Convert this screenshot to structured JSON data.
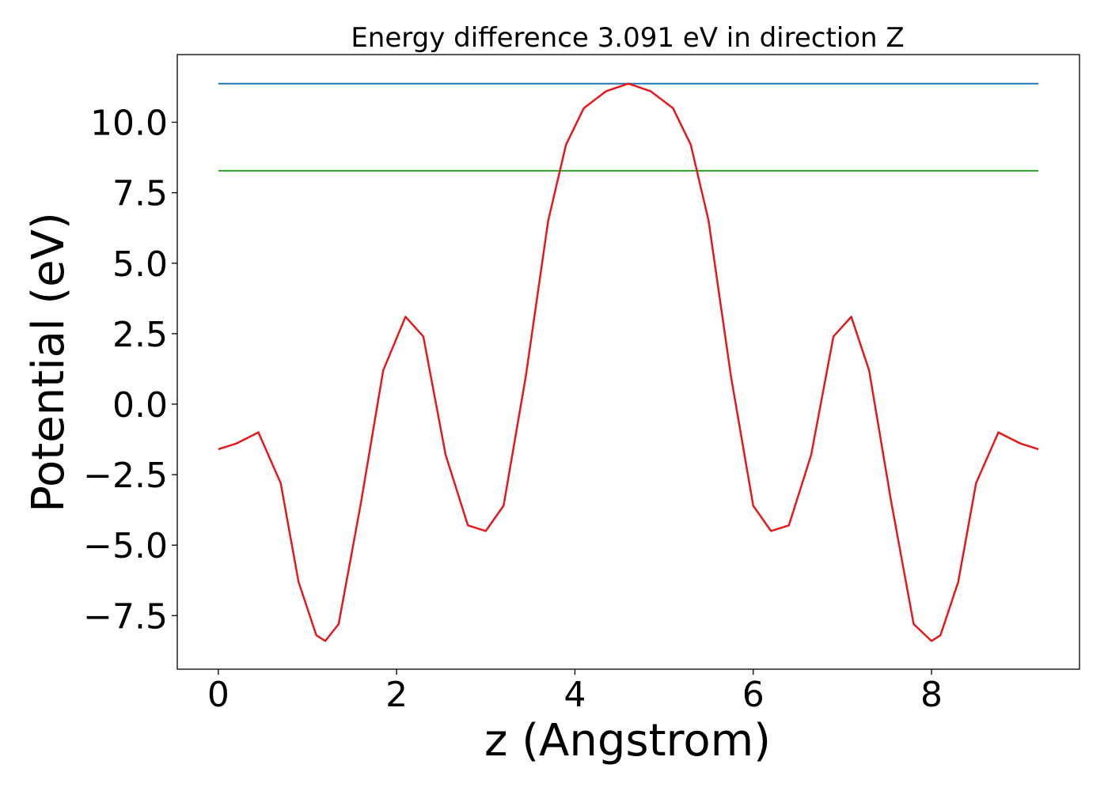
{
  "chart_data": {
    "type": "line",
    "title": "Energy difference 3.091 eV in direction Z",
    "xlabel": "z (Angstrom)",
    "ylabel": "Potential (eV)",
    "xlim": [
      -0.46,
      9.66
    ],
    "ylim": [
      -9.4,
      12.4
    ],
    "xticks": [
      0,
      2,
      4,
      6,
      8
    ],
    "xtick_labels": [
      "0",
      "2",
      "4",
      "6",
      "8"
    ],
    "yticks": [
      -7.5,
      -5.0,
      -2.5,
      0.0,
      2.5,
      5.0,
      7.5,
      10.0
    ],
    "ytick_labels": [
      "−7.5",
      "−5.0",
      "−2.5",
      "0.0",
      "2.5",
      "5.0",
      "7.5",
      "10.0"
    ],
    "grid": false,
    "legend": false,
    "series": [
      {
        "color": "#1f77b4",
        "x": [
          0,
          9.2
        ],
        "y": [
          11.37,
          11.37
        ]
      },
      {
        "color": "#2ca02c",
        "x": [
          0,
          9.2
        ],
        "y": [
          8.28,
          8.28
        ]
      },
      {
        "color": "#e31a1c",
        "x": [
          0,
          0.2,
          0.45,
          0.7,
          0.9,
          1.1,
          1.2,
          1.35,
          1.6,
          1.85,
          2.1,
          2.3,
          2.55,
          2.8,
          3.0,
          3.2,
          3.45,
          3.7,
          3.9,
          4.1,
          4.35,
          4.6,
          4.85,
          5.1,
          5.3,
          5.5,
          5.75,
          6.0,
          6.2,
          6.4,
          6.65,
          6.9,
          7.1,
          7.3,
          7.55,
          7.8,
          8.0,
          8.1,
          8.3,
          8.5,
          8.75,
          9.0,
          9.2
        ],
        "y": [
          -1.6,
          -1.4,
          -1.0,
          -2.8,
          -6.3,
          -8.2,
          -8.4,
          -7.8,
          -3.5,
          1.2,
          3.1,
          2.4,
          -1.8,
          -4.3,
          -4.5,
          -3.6,
          1.0,
          6.5,
          9.2,
          10.5,
          11.1,
          11.37,
          11.1,
          10.5,
          9.2,
          6.5,
          1.0,
          -3.6,
          -4.5,
          -4.3,
          -1.8,
          2.4,
          3.1,
          1.2,
          -3.5,
          -7.8,
          -8.4,
          -8.2,
          -6.3,
          -2.8,
          -1.0,
          -1.4,
          -1.6
        ]
      }
    ]
  }
}
